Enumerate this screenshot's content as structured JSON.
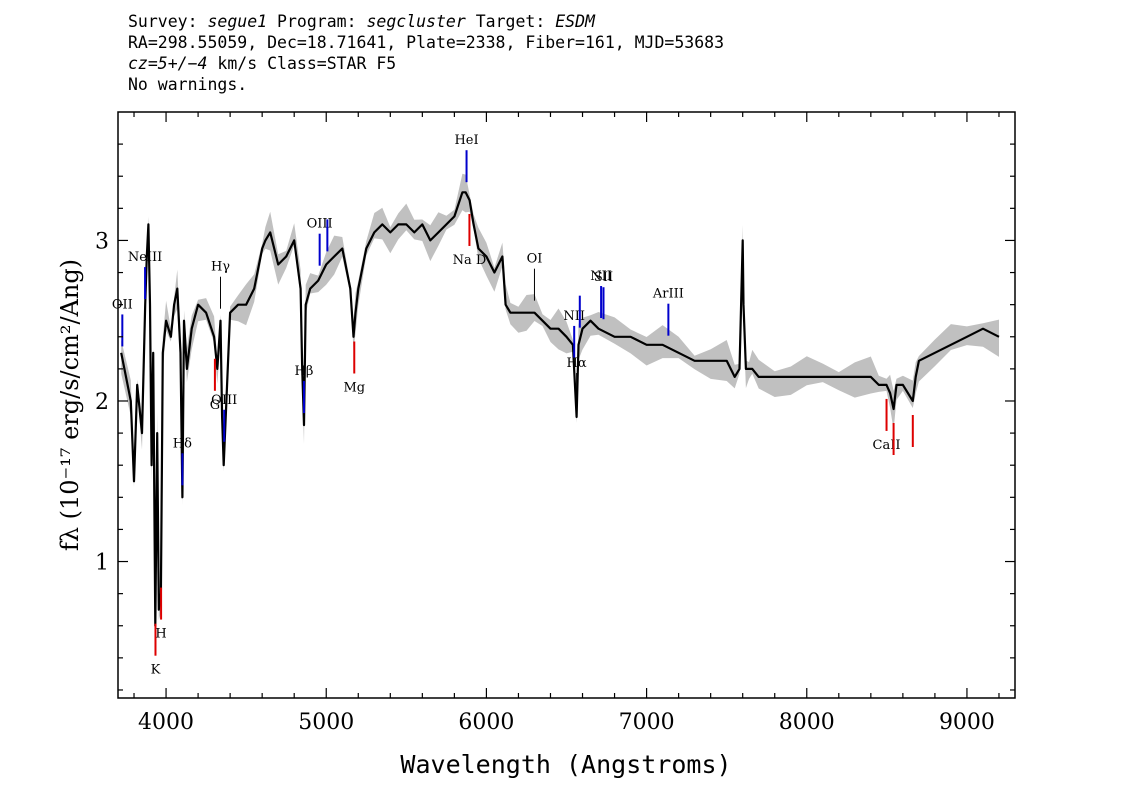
{
  "header": {
    "survey_label": "Survey:",
    "survey": "segue1",
    "program_label": "Program:",
    "program": "segcluster",
    "target_label": "Target:",
    "target": "ESDM",
    "line2": "RA=298.55059, Dec=18.71641, Plate=2338, Fiber=161, MJD=53683",
    "cz": "cz=5+/−4",
    "cz_units": "km/s Class=STAR F5",
    "warnings": "No warnings."
  },
  "colors": {
    "spectrum": "#000000",
    "error_band": "#c0c0c0",
    "emission_line": "#0000cc",
    "absorption_line": "#dd0000",
    "sky_line": "#000000"
  },
  "chart_data": {
    "type": "line",
    "title": "",
    "xlabel": "Wavelength (Angstroms)",
    "ylabel": "fλ (10⁻¹⁷ erg/s/cm²/Ang)",
    "xlim": [
      3700,
      9300
    ],
    "ylim": [
      0.15,
      3.8
    ],
    "xticks": [
      4000,
      5000,
      6000,
      7000,
      8000,
      9000
    ],
    "yticks": [
      1,
      2,
      3
    ],
    "grid": false,
    "series": [
      {
        "x": [
          3720,
          3780,
          3800,
          3820,
          3850,
          3870,
          3880,
          3890,
          3900,
          3910,
          3920,
          3933,
          3945,
          3955,
          3968,
          3980,
          4000,
          4030,
          4050,
          4070,
          4090,
          4102,
          4112,
          4130,
          4160,
          4200,
          4250,
          4300,
          4320,
          4340,
          4350,
          4360,
          4400,
          4450,
          4500,
          4550,
          4600,
          4620,
          4650,
          4700,
          4750,
          4800,
          4840,
          4850,
          4861,
          4872,
          4900,
          4950,
          5000,
          5050,
          5100,
          5150,
          5170,
          5183,
          5200,
          5250,
          5300,
          5350,
          5400,
          5450,
          5500,
          5550,
          5600,
          5650,
          5700,
          5750,
          5800,
          5850,
          5870,
          5895,
          5920,
          5950,
          6000,
          6050,
          6100,
          6120,
          6150,
          6200,
          6250,
          6300,
          6350,
          6400,
          6450,
          6500,
          6540,
          6563,
          6575,
          6600,
          6650,
          6700,
          6800,
          6900,
          7000,
          7100,
          7200,
          7300,
          7400,
          7500,
          7550,
          7580,
          7600,
          7605,
          7620,
          7640,
          7660,
          7700,
          7800,
          7900,
          8000,
          8100,
          8200,
          8300,
          8400,
          8450,
          8498,
          8520,
          8542,
          8560,
          8600,
          8662,
          8680,
          8700,
          8800,
          8900,
          9000,
          9100,
          9200
        ],
        "y": [
          2.3,
          2.0,
          1.5,
          2.1,
          1.8,
          2.6,
          2.9,
          3.1,
          2.6,
          1.6,
          2.3,
          0.6,
          1.8,
          0.7,
          0.8,
          2.3,
          2.5,
          2.4,
          2.6,
          2.7,
          2.3,
          1.4,
          2.5,
          2.2,
          2.45,
          2.6,
          2.55,
          2.4,
          2.2,
          2.5,
          1.9,
          1.6,
          2.55,
          2.6,
          2.6,
          2.7,
          2.95,
          3.0,
          3.05,
          2.85,
          2.9,
          3.0,
          2.7,
          2.2,
          1.85,
          2.6,
          2.7,
          2.75,
          2.85,
          2.9,
          2.95,
          2.7,
          2.4,
          2.55,
          2.7,
          2.95,
          3.05,
          3.1,
          3.05,
          3.1,
          3.1,
          3.05,
          3.1,
          3.0,
          3.05,
          3.1,
          3.15,
          3.3,
          3.3,
          3.25,
          3.1,
          2.95,
          2.9,
          2.8,
          2.9,
          2.6,
          2.55,
          2.55,
          2.55,
          2.55,
          2.5,
          2.45,
          2.45,
          2.4,
          2.35,
          1.9,
          2.35,
          2.45,
          2.5,
          2.45,
          2.4,
          2.4,
          2.35,
          2.35,
          2.3,
          2.25,
          2.25,
          2.25,
          2.15,
          2.2,
          3.0,
          2.6,
          2.2,
          2.2,
          2.2,
          2.15,
          2.15,
          2.15,
          2.15,
          2.15,
          2.15,
          2.15,
          2.15,
          2.1,
          2.1,
          2.05,
          1.95,
          2.1,
          2.1,
          2.0,
          2.15,
          2.25,
          2.3,
          2.35,
          2.4,
          2.45,
          2.4
        ]
      }
    ],
    "annotations": [
      {
        "label": "OII",
        "wavelength": 3727,
        "kind": "emission"
      },
      {
        "label": "NeIII",
        "wavelength": 3869,
        "kind": "emission"
      },
      {
        "label": "Hδ",
        "wavelength": 4102,
        "kind": "emission"
      },
      {
        "label": "Hγ",
        "wavelength": 4340,
        "kind": "sky"
      },
      {
        "label": "OIII",
        "wavelength": 4363,
        "kind": "emission"
      },
      {
        "label": "Hβ",
        "wavelength": 4861,
        "kind": "emission"
      },
      {
        "label": "OIII",
        "wavelength": 4959,
        "kind": "emission"
      },
      {
        "label": "",
        "wavelength": 5007,
        "kind": "emission"
      },
      {
        "label": "HeI",
        "wavelength": 5876,
        "kind": "emission"
      },
      {
        "label": "OI",
        "wavelength": 6300,
        "kind": "sky"
      },
      {
        "label": "NII",
        "wavelength": 6548,
        "kind": "emission"
      },
      {
        "label": "Hα",
        "wavelength": 6563,
        "kind": "sky"
      },
      {
        "label": "",
        "wavelength": 6583,
        "kind": "emission"
      },
      {
        "label": "NII",
        "wavelength": 6716,
        "kind": "emission"
      },
      {
        "label": "SII",
        "wavelength": 6731,
        "kind": "emission"
      },
      {
        "label": "ArIII",
        "wavelength": 7136,
        "kind": "emission"
      },
      {
        "label": "K",
        "wavelength": 3934,
        "kind": "absorption"
      },
      {
        "label": "H",
        "wavelength": 3969,
        "kind": "absorption"
      },
      {
        "label": "G",
        "wavelength": 4305,
        "kind": "absorption"
      },
      {
        "label": "Mg",
        "wavelength": 5175,
        "kind": "absorption"
      },
      {
        "label": "Na D",
        "wavelength": 5894,
        "kind": "absorption"
      },
      {
        "label": "CaII",
        "wavelength": 8498,
        "kind": "absorption"
      },
      {
        "label": "",
        "wavelength": 8542,
        "kind": "absorption"
      },
      {
        "label": "",
        "wavelength": 8662,
        "kind": "absorption"
      }
    ]
  }
}
